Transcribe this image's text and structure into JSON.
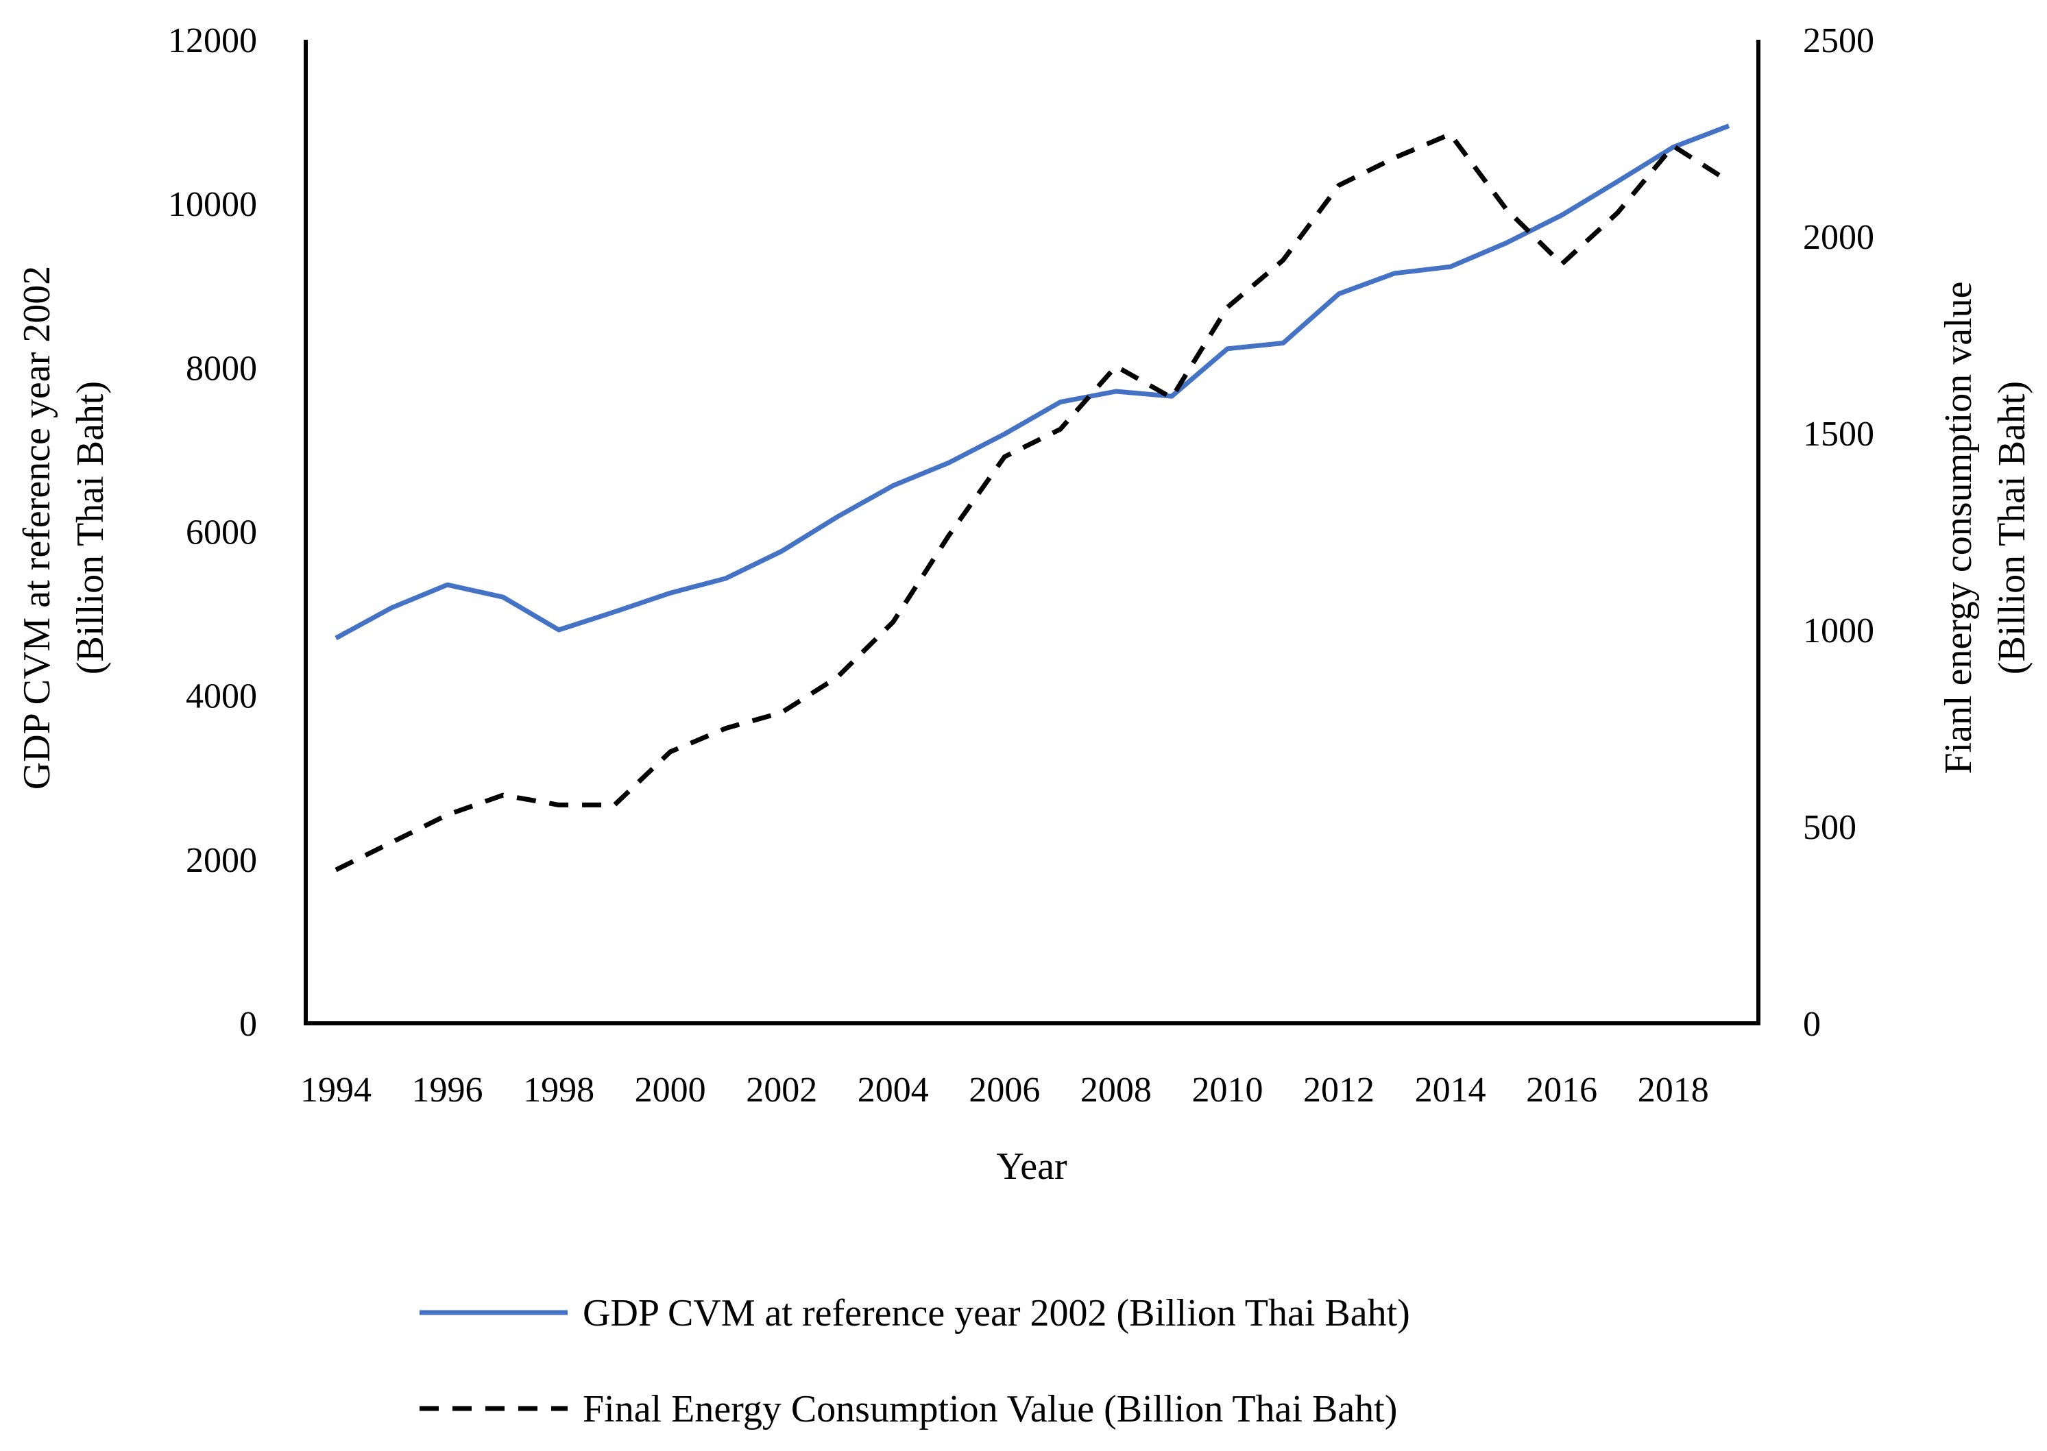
{
  "chart_data": {
    "type": "line",
    "title": "",
    "xlabel": "Year",
    "ylabel_left": [
      "GDP CVM at reference year 2002",
      "(Billion Thai Baht)"
    ],
    "ylabel_right": [
      "Fianl energy consumption value",
      "(Billion Thai Baht)"
    ],
    "ylim_left": [
      0,
      12000
    ],
    "ylim_right": [
      0,
      2500
    ],
    "yticks_left": [
      "0",
      "2000",
      "4000",
      "6000",
      "8000",
      "10000",
      "12000"
    ],
    "yticks_right": [
      "0",
      "500",
      "1000",
      "1500",
      "2000",
      "2500"
    ],
    "x": [
      1994,
      1995,
      1996,
      1997,
      1998,
      1999,
      2000,
      2001,
      2002,
      2003,
      2004,
      2005,
      2006,
      2007,
      2008,
      2009,
      2010,
      2011,
      2012,
      2013,
      2014,
      2015,
      2016,
      2017,
      2018,
      2019
    ],
    "xtick_labels": [
      "1994",
      "1996",
      "1998",
      "2000",
      "2002",
      "2004",
      "2006",
      "2008",
      "2010",
      "2012",
      "2014",
      "2016",
      "2018"
    ],
    "xtick_values": [
      1994,
      1996,
      1998,
      2000,
      2002,
      2004,
      2006,
      2008,
      2010,
      2012,
      2014,
      2016,
      2018
    ],
    "series": [
      {
        "name": "GDP CVM at reference year 2002 (Billion Thai Baht)",
        "axis": "left",
        "style": "solid",
        "color": "#4472C4",
        "values": [
          4700,
          5070,
          5350,
          5200,
          4800,
          5020,
          5250,
          5430,
          5760,
          6180,
          6560,
          6840,
          7190,
          7580,
          7710,
          7650,
          8230,
          8300,
          8900,
          9150,
          9230,
          9520,
          9860,
          10270,
          10690,
          10950
        ]
      },
      {
        "name": "Final Energy Consumption Value (Billion Thai Baht)",
        "axis": "right",
        "style": "dashed",
        "color": "#000000",
        "values": [
          390,
          460,
          530,
          580,
          555,
          555,
          690,
          750,
          790,
          880,
          1020,
          1240,
          1440,
          1510,
          1670,
          1590,
          1820,
          1940,
          2130,
          2200,
          2260,
          2070,
          1930,
          2060,
          2230,
          2140
        ]
      }
    ],
    "legend_position": "bottom"
  }
}
